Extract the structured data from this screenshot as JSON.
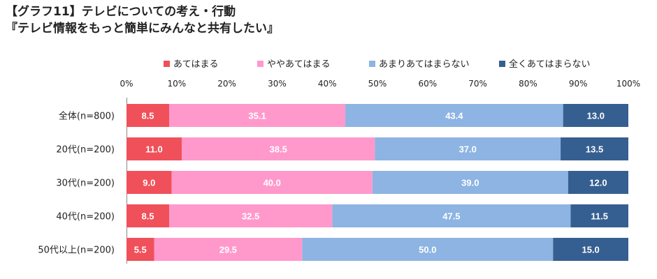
{
  "title_line1": "【グラフ11】テレビについての考え・行動",
  "title_line2": "『テレビ情報をもっと簡単にみんなと共有したい』",
  "chart_data": {
    "type": "bar",
    "orientation": "horizontal",
    "stacked": true,
    "percent": true,
    "xlim": [
      0,
      100
    ],
    "ticks": [
      "0%",
      "10%",
      "20%",
      "30%",
      "40%",
      "50%",
      "60%",
      "70%",
      "80%",
      "90%",
      "100%"
    ],
    "categories": [
      "全体(n=800)",
      "20代(n=200)",
      "30代(n=200)",
      "40代(n=200)",
      "50代以上(n=200)"
    ],
    "series": [
      {
        "name": "あてはまる",
        "color": "#f0505a",
        "values": [
          8.5,
          11.0,
          9.0,
          8.5,
          5.5
        ]
      },
      {
        "name": "ややあてはまる",
        "color": "#ff99cc",
        "values": [
          35.1,
          38.5,
          40.0,
          32.5,
          29.5
        ]
      },
      {
        "name": "あまりあてはまらない",
        "color": "#8db4e2",
        "values": [
          43.4,
          37.0,
          39.0,
          47.5,
          50.0
        ]
      },
      {
        "name": "全くあてはまらない",
        "color": "#365f91",
        "values": [
          13.0,
          13.5,
          12.0,
          11.5,
          15.0
        ]
      }
    ],
    "legend": "top",
    "grid": false
  }
}
